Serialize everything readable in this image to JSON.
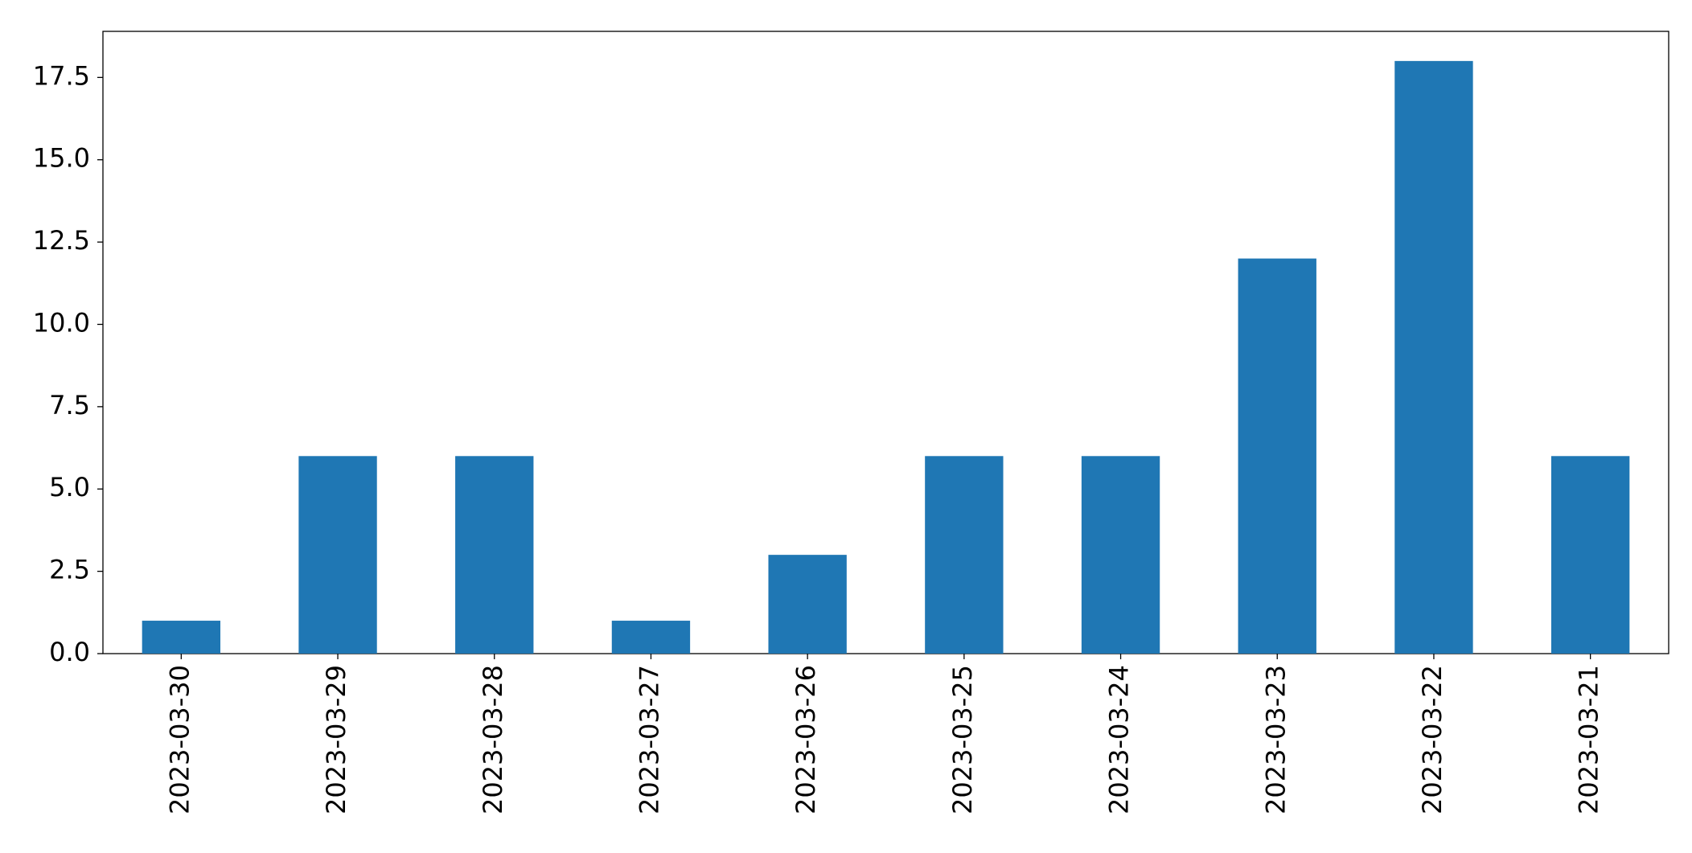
{
  "chart_data": {
    "type": "bar",
    "categories": [
      "2023-03-30",
      "2023-03-29",
      "2023-03-28",
      "2023-03-27",
      "2023-03-26",
      "2023-03-25",
      "2023-03-24",
      "2023-03-23",
      "2023-03-22",
      "2023-03-21"
    ],
    "values": [
      1,
      6,
      6,
      1,
      3,
      6,
      6,
      12,
      18,
      6
    ],
    "color": "#1f77b4",
    "ylim": [
      0,
      18.9
    ],
    "yticks": [
      {
        "value": 0,
        "label": "0.0"
      },
      2.5,
      {
        "value": 5,
        "label": "5.0"
      },
      7.5,
      {
        "value": 10,
        "label": "10.0"
      },
      12.5,
      {
        "value": 15,
        "label": "15.0"
      },
      17.5
    ],
    "grid": false
  }
}
